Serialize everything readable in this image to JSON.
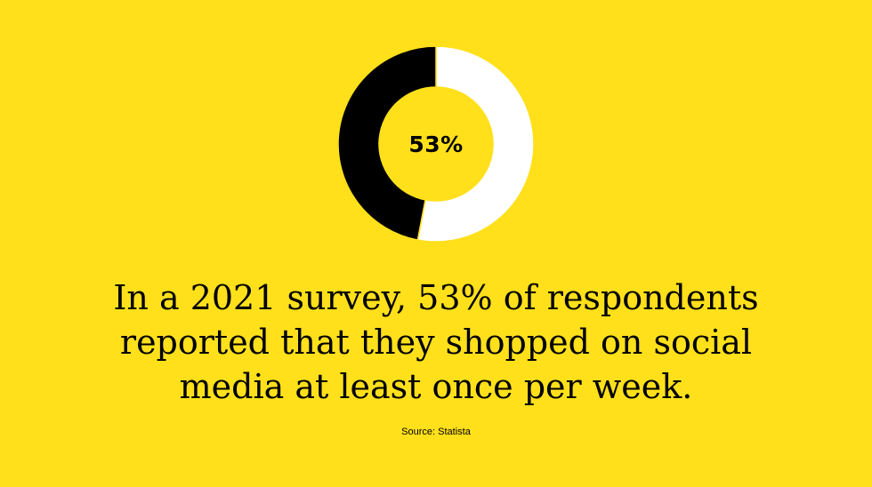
{
  "chart_data": {
    "type": "pie",
    "variant": "donut",
    "center_label": "53%",
    "slices": [
      {
        "value": 53,
        "color": "#FFFFFF"
      },
      {
        "value": 47,
        "color": "#000000"
      }
    ]
  },
  "headline": "In a 2021 survey, 53% of respondents reported that they shopped on social media at least once per week.",
  "source": "Source: Statista",
  "colors": {
    "background": "#FFE01B",
    "text": "#000000"
  }
}
